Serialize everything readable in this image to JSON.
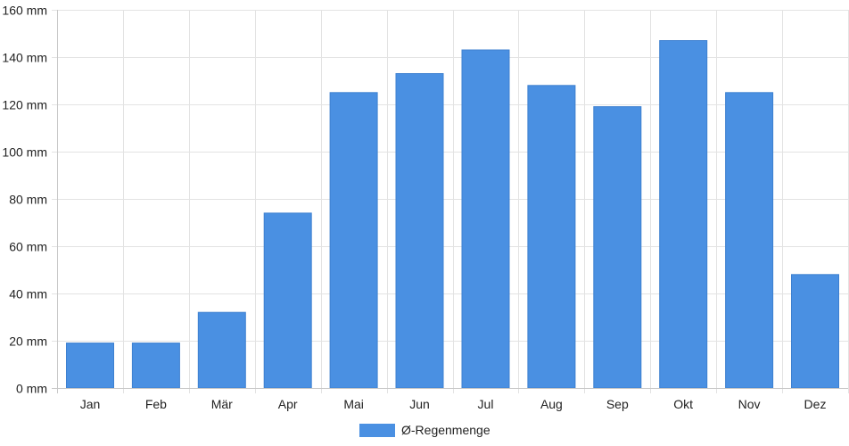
{
  "chart_data": {
    "type": "bar",
    "categories": [
      "Jan",
      "Feb",
      "Mär",
      "Apr",
      "Mai",
      "Jun",
      "Jul",
      "Aug",
      "Sep",
      "Okt",
      "Nov",
      "Dez"
    ],
    "series": [
      {
        "name": "Ø-Regenmenge",
        "values": [
          19,
          19,
          32,
          74,
          125,
          133,
          143,
          128,
          119,
          147,
          125,
          48
        ],
        "color": "#4a90e2"
      }
    ],
    "y_unit": "mm",
    "ylim": [
      0,
      160
    ],
    "y_ticks": [
      0,
      20,
      40,
      60,
      80,
      100,
      120,
      140,
      160
    ],
    "grid": true,
    "legend_position": "bottom-center"
  }
}
